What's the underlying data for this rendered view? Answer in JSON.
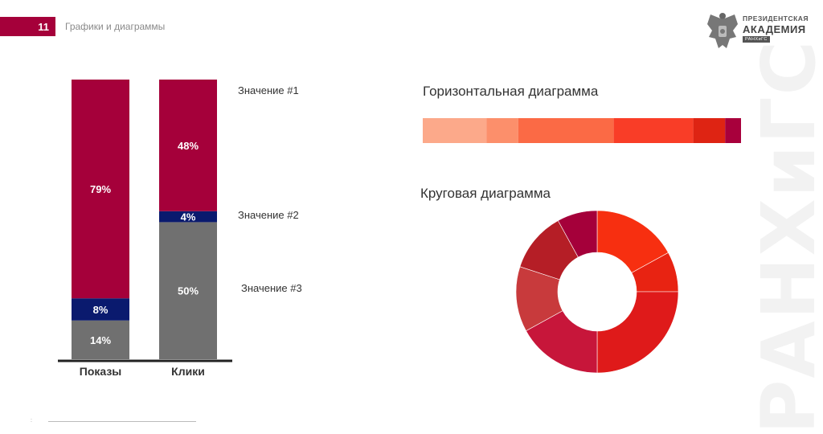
{
  "header": {
    "page_number": "11",
    "section_title": "Графики и диаграммы"
  },
  "logo": {
    "line1": "ПРЕЗИДЕНТСКАЯ",
    "line2": "АКАДЕМИЯ",
    "line3": "РАНХиГС"
  },
  "watermark": "РАНХиГС",
  "footer": {
    "marker": ":"
  },
  "colors": {
    "brand": "#a5003a",
    "navy": "#0a1a6e",
    "gray": "#707070"
  },
  "chart_data": [
    {
      "type": "bar",
      "stacked": true,
      "categories": [
        "Показы",
        "Клики"
      ],
      "series": [
        {
          "name": "Значение #3",
          "values": [
            14,
            50
          ],
          "labels": [
            "14%",
            "50%"
          ],
          "color": "#707070"
        },
        {
          "name": "Значение #2",
          "values": [
            8,
            4
          ],
          "labels": [
            "8%",
            "4%"
          ],
          "color": "#0a1a6e"
        },
        {
          "name": "Значение #1",
          "values": [
            79,
            48
          ],
          "labels": [
            "79%",
            "48%"
          ],
          "color": "#a5003a"
        }
      ],
      "legend_placement": "right"
    },
    {
      "type": "bar",
      "orientation": "horizontal",
      "stacked": true,
      "title": "Горизонтальная диаграмма",
      "segments": [
        {
          "value": 20,
          "color": "#fca98a"
        },
        {
          "value": 10,
          "color": "#fc8f6b"
        },
        {
          "value": 30,
          "color": "#fb6a45"
        },
        {
          "value": 25,
          "color": "#f93d27"
        },
        {
          "value": 10,
          "color": "#de2413"
        },
        {
          "value": 5,
          "color": "#a8003c"
        }
      ]
    },
    {
      "type": "pie",
      "donut": true,
      "title": "Круговая диаграмма",
      "slices": [
        {
          "value": 17,
          "color": "#f72f10"
        },
        {
          "value": 8,
          "color": "#e82312"
        },
        {
          "value": 25,
          "color": "#df1a1a"
        },
        {
          "value": 17,
          "color": "#c7163a"
        },
        {
          "value": 13,
          "color": "#c83a3c"
        },
        {
          "value": 12,
          "color": "#b51e26"
        },
        {
          "value": 8,
          "color": "#a5003a"
        }
      ]
    }
  ]
}
